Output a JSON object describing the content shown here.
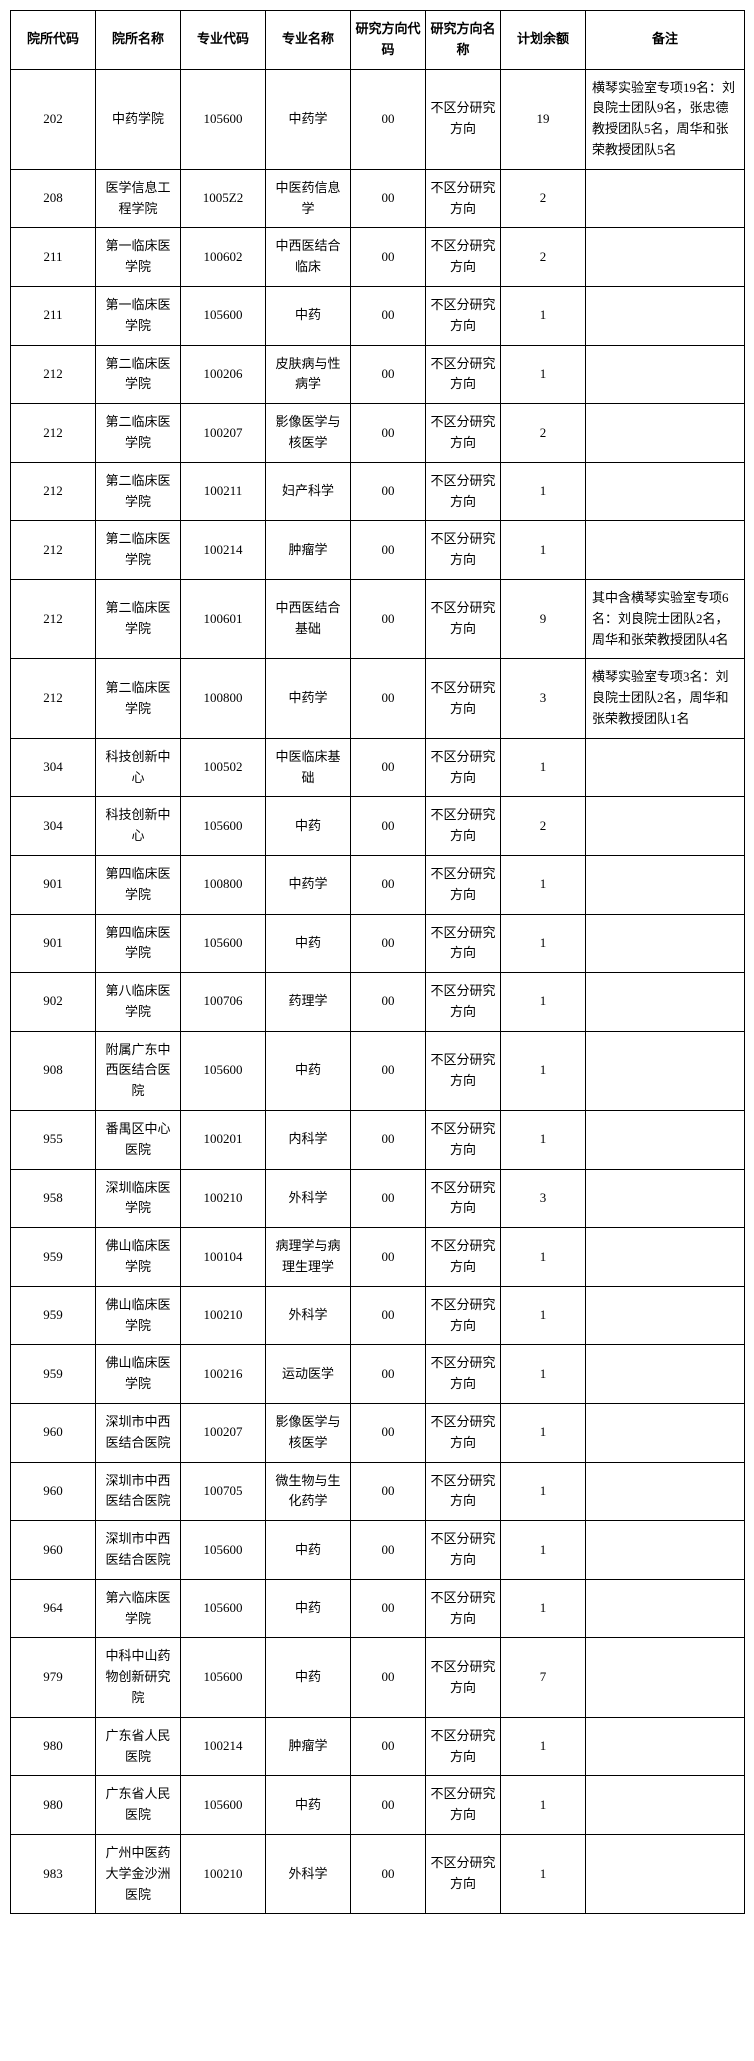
{
  "headers": [
    "院所代码",
    "院所名称",
    "专业代码",
    "专业名称",
    "研究方向代码",
    "研究方向名称",
    "计划余额",
    "备注"
  ],
  "rows": [
    {
      "c1": "202",
      "c2": "中药学院",
      "c3": "105600",
      "c4": "中药学",
      "c5": "00",
      "c6": "不区分研究方向",
      "c7": "19",
      "c8": "横琴实验室专项19名：刘良院士团队9名，张忠德教授团队5名，周华和张荣教授团队5名"
    },
    {
      "c1": "208",
      "c2": "医学信息工程学院",
      "c3": "1005Z2",
      "c4": "中医药信息学",
      "c5": "00",
      "c6": "不区分研究方向",
      "c7": "2",
      "c8": ""
    },
    {
      "c1": "211",
      "c2": "第一临床医学院",
      "c3": "100602",
      "c4": "中西医结合临床",
      "c5": "00",
      "c6": "不区分研究方向",
      "c7": "2",
      "c8": ""
    },
    {
      "c1": "211",
      "c2": "第一临床医学院",
      "c3": "105600",
      "c4": "中药",
      "c5": "00",
      "c6": "不区分研究方向",
      "c7": "1",
      "c8": ""
    },
    {
      "c1": "212",
      "c2": "第二临床医学院",
      "c3": "100206",
      "c4": "皮肤病与性病学",
      "c5": "00",
      "c6": "不区分研究方向",
      "c7": "1",
      "c8": ""
    },
    {
      "c1": "212",
      "c2": "第二临床医学院",
      "c3": "100207",
      "c4": "影像医学与核医学",
      "c5": "00",
      "c6": "不区分研究方向",
      "c7": "2",
      "c8": ""
    },
    {
      "c1": "212",
      "c2": "第二临床医学院",
      "c3": "100211",
      "c4": "妇产科学",
      "c5": "00",
      "c6": "不区分研究方向",
      "c7": "1",
      "c8": ""
    },
    {
      "c1": "212",
      "c2": "第二临床医学院",
      "c3": "100214",
      "c4": "肿瘤学",
      "c5": "00",
      "c6": "不区分研究方向",
      "c7": "1",
      "c8": ""
    },
    {
      "c1": "212",
      "c2": "第二临床医学院",
      "c3": "100601",
      "c4": "中西医结合基础",
      "c5": "00",
      "c6": "不区分研究方向",
      "c7": "9",
      "c8": "其中含横琴实验室专项6名：刘良院士团队2名，周华和张荣教授团队4名"
    },
    {
      "c1": "212",
      "c2": "第二临床医学院",
      "c3": "100800",
      "c4": "中药学",
      "c5": "00",
      "c6": "不区分研究方向",
      "c7": "3",
      "c8": "横琴实验室专项3名：刘良院士团队2名，周华和张荣教授团队1名"
    },
    {
      "c1": "304",
      "c2": "科技创新中心",
      "c3": "100502",
      "c4": "中医临床基础",
      "c5": "00",
      "c6": "不区分研究方向",
      "c7": "1",
      "c8": ""
    },
    {
      "c1": "304",
      "c2": "科技创新中心",
      "c3": "105600",
      "c4": "中药",
      "c5": "00",
      "c6": "不区分研究方向",
      "c7": "2",
      "c8": ""
    },
    {
      "c1": "901",
      "c2": "第四临床医学院",
      "c3": "100800",
      "c4": "中药学",
      "c5": "00",
      "c6": "不区分研究方向",
      "c7": "1",
      "c8": ""
    },
    {
      "c1": "901",
      "c2": "第四临床医学院",
      "c3": "105600",
      "c4": "中药",
      "c5": "00",
      "c6": "不区分研究方向",
      "c7": "1",
      "c8": ""
    },
    {
      "c1": "902",
      "c2": "第八临床医学院",
      "c3": "100706",
      "c4": "药理学",
      "c5": "00",
      "c6": "不区分研究方向",
      "c7": "1",
      "c8": ""
    },
    {
      "c1": "908",
      "c2": "附属广东中西医结合医院",
      "c3": "105600",
      "c4": "中药",
      "c5": "00",
      "c6": "不区分研究方向",
      "c7": "1",
      "c8": ""
    },
    {
      "c1": "955",
      "c2": "番禺区中心医院",
      "c3": "100201",
      "c4": "内科学",
      "c5": "00",
      "c6": "不区分研究方向",
      "c7": "1",
      "c8": ""
    },
    {
      "c1": "958",
      "c2": "深圳临床医学院",
      "c3": "100210",
      "c4": "外科学",
      "c5": "00",
      "c6": "不区分研究方向",
      "c7": "3",
      "c8": ""
    },
    {
      "c1": "959",
      "c2": "佛山临床医学院",
      "c3": "100104",
      "c4": "病理学与病理生理学",
      "c5": "00",
      "c6": "不区分研究方向",
      "c7": "1",
      "c8": ""
    },
    {
      "c1": "959",
      "c2": "佛山临床医学院",
      "c3": "100210",
      "c4": "外科学",
      "c5": "00",
      "c6": "不区分研究方向",
      "c7": "1",
      "c8": ""
    },
    {
      "c1": "959",
      "c2": "佛山临床医学院",
      "c3": "100216",
      "c4": "运动医学",
      "c5": "00",
      "c6": "不区分研究方向",
      "c7": "1",
      "c8": ""
    },
    {
      "c1": "960",
      "c2": "深圳市中西医结合医院",
      "c3": "100207",
      "c4": "影像医学与核医学",
      "c5": "00",
      "c6": "不区分研究方向",
      "c7": "1",
      "c8": ""
    },
    {
      "c1": "960",
      "c2": "深圳市中西医结合医院",
      "c3": "100705",
      "c4": "微生物与生化药学",
      "c5": "00",
      "c6": "不区分研究方向",
      "c7": "1",
      "c8": ""
    },
    {
      "c1": "960",
      "c2": "深圳市中西医结合医院",
      "c3": "105600",
      "c4": "中药",
      "c5": "00",
      "c6": "不区分研究方向",
      "c7": "1",
      "c8": ""
    },
    {
      "c1": "964",
      "c2": "第六临床医学院",
      "c3": "105600",
      "c4": "中药",
      "c5": "00",
      "c6": "不区分研究方向",
      "c7": "1",
      "c8": ""
    },
    {
      "c1": "979",
      "c2": "中科中山药物创新研究院",
      "c3": "105600",
      "c4": "中药",
      "c5": "00",
      "c6": "不区分研究方向",
      "c7": "7",
      "c8": ""
    },
    {
      "c1": "980",
      "c2": "广东省人民医院",
      "c3": "100214",
      "c4": "肿瘤学",
      "c5": "00",
      "c6": "不区分研究方向",
      "c7": "1",
      "c8": ""
    },
    {
      "c1": "980",
      "c2": "广东省人民医院",
      "c3": "105600",
      "c4": "中药",
      "c5": "00",
      "c6": "不区分研究方向",
      "c7": "1",
      "c8": ""
    },
    {
      "c1": "983",
      "c2": "广州中医药大学金沙洲医院",
      "c3": "100210",
      "c4": "外科学",
      "c5": "00",
      "c6": "不区分研究方向",
      "c7": "1",
      "c8": ""
    }
  ]
}
